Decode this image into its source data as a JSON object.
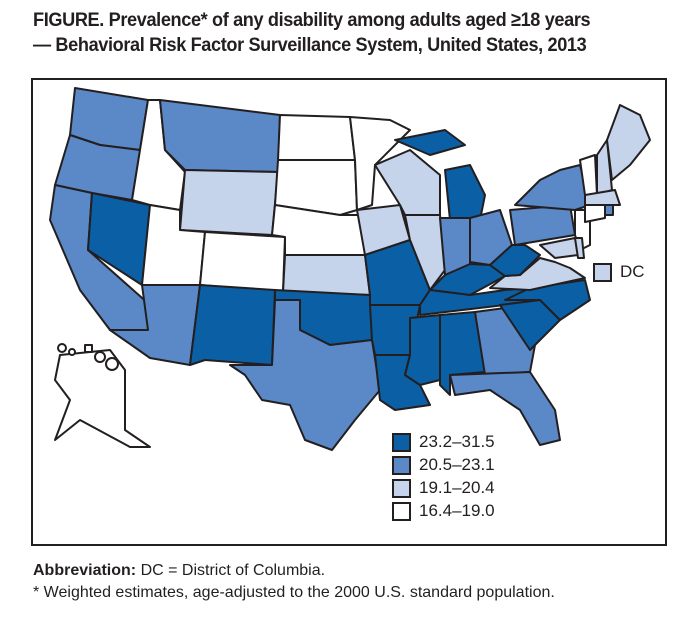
{
  "title_line1": "FIGURE. Prevalence* of any disability among adults aged ≥18 years",
  "title_line2": "— Behavioral Risk Factor Surveillance System, United States, 2013",
  "legend": [
    {
      "label": "23.2–31.5",
      "color": "#0b5fa5"
    },
    {
      "label": "20.5–23.1",
      "color": "#5b88c6"
    },
    {
      "label": "19.1–20.4",
      "color": "#c5d3eb"
    },
    {
      "label": "16.4–19.0",
      "color": "#ffffff"
    }
  ],
  "dc": {
    "label": "DC",
    "category": 2
  },
  "states": {
    "WA": 1,
    "OR": 1,
    "CA": 1,
    "NV": 0,
    "ID": 3,
    "MT": 1,
    "WY": 2,
    "UT": 3,
    "CO": 3,
    "AZ": 1,
    "NM": 0,
    "ND": 3,
    "SD": 3,
    "NE": 3,
    "KS": 2,
    "OK": 0,
    "TX": 1,
    "MN": 3,
    "IA": 2,
    "MO": 0,
    "AR": 0,
    "LA": 0,
    "WI": 2,
    "IL": 2,
    "MI": 0,
    "MIU": 0,
    "IN": 1,
    "OH": 1,
    "KY": 0,
    "TN": 0,
    "MS": 0,
    "AL": 0,
    "GA": 1,
    "FL": 1,
    "SC": 0,
    "NC": 0,
    "VA": 2,
    "WV": 0,
    "PA": 1,
    "NY": 1,
    "NJ": 3,
    "MD": 2,
    "DE": 2,
    "VT": 3,
    "NH": 2,
    "ME": 2,
    "MA": 2,
    "RI": 1,
    "CT": 3,
    "AK": 3,
    "HI": 3
  },
  "abbrev_label": "Abbreviation:",
  "abbrev_text": " DC = District of Columbia.",
  "footnote": "* Weighted estimates, age-adjusted to the 2000 U.S. standard population."
}
